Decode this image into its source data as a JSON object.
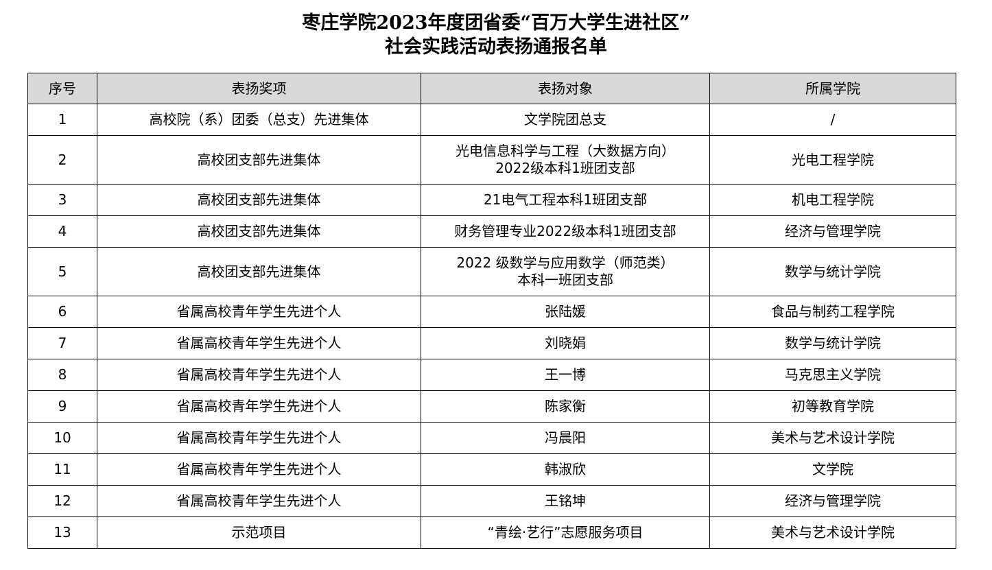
{
  "title_line1": "枣庄学院2023年度团省委“百万大学生进社区”",
  "title_line2": "社会实践活动表扬通报名单",
  "table": {
    "headers": [
      "序号",
      "表扬奖项",
      "表扬对象",
      "所属学院"
    ],
    "rows": [
      {
        "no": "1",
        "award": "高校院（系）团委（总支）先进集体",
        "target": "文学院团总支",
        "target2": "",
        "college": "/"
      },
      {
        "no": "2",
        "award": "高校团支部先进集体",
        "target": "光电信息科学与工程（大数据方向）",
        "target2": "2022级本科1班团支部",
        "college": "光电工程学院"
      },
      {
        "no": "3",
        "award": "高校团支部先进集体",
        "target": "21电气工程本科1班团支部",
        "target2": "",
        "college": "机电工程学院"
      },
      {
        "no": "4",
        "award": "高校团支部先进集体",
        "target": "财务管理专业2022级本科1班团支部",
        "target2": "",
        "college": "经济与管理学院"
      },
      {
        "no": "5",
        "award": "高校团支部先进集体",
        "target": "2022 级数学与应用数学（师范类）",
        "target2": "本科一班团支部",
        "college": "数学与统计学院"
      },
      {
        "no": "6",
        "award": "省属高校青年学生先进个人",
        "target": "张陆媛",
        "target2": "",
        "college": "食品与制药工程学院"
      },
      {
        "no": "7",
        "award": "省属高校青年学生先进个人",
        "target": "刘晓娟",
        "target2": "",
        "college": "数学与统计学院"
      },
      {
        "no": "8",
        "award": "省属高校青年学生先进个人",
        "target": "王一博",
        "target2": "",
        "college": "马克思主义学院"
      },
      {
        "no": "9",
        "award": "省属高校青年学生先进个人",
        "target": "陈家衡",
        "target2": "",
        "college": "初等教育学院"
      },
      {
        "no": "10",
        "award": "省属高校青年学生先进个人",
        "target": "冯晨阳",
        "target2": "",
        "college": "美术与艺术设计学院"
      },
      {
        "no": "11",
        "award": "省属高校青年学生先进个人",
        "target": "韩淑欣",
        "target2": "",
        "college": "文学院"
      },
      {
        "no": "12",
        "award": "省属高校青年学生先进个人",
        "target": "王铭坤",
        "target2": "",
        "college": "经济与管理学院"
      },
      {
        "no": "13",
        "award": "示范项目",
        "target": "“青绘·艺行”志愿服务项目",
        "target2": "",
        "college": "美术与艺术设计学院"
      }
    ]
  }
}
